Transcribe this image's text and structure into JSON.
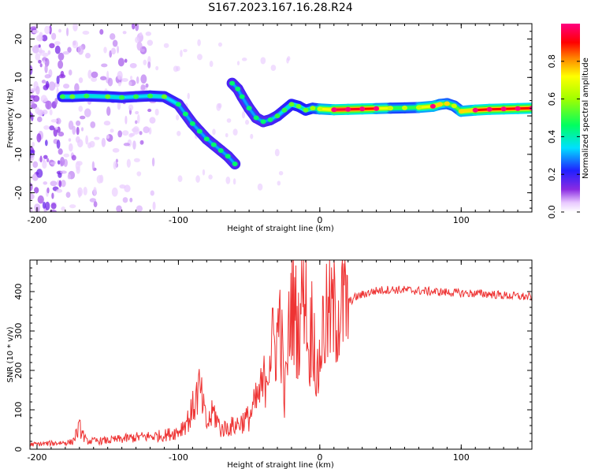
{
  "figure_title": "S167.2023.167.16.28.R24",
  "colors": {
    "snr_line": "#ee3333",
    "axis": "#000000",
    "background": "#ffffff"
  },
  "chart_data": [
    {
      "type": "heatmap",
      "title": "",
      "xlabel": "Height of straight line (km)",
      "ylabel": "Frequency (Hz)",
      "xlim": [
        -205,
        150
      ],
      "ylim": [
        -25,
        24
      ],
      "x_ticks": [
        -200,
        -100,
        0,
        100
      ],
      "x_tick_labels": [
        "-200",
        "-100",
        "0",
        "100"
      ],
      "y_ticks": [
        -20,
        -10,
        0,
        10,
        20
      ],
      "y_tick_labels": [
        "-20",
        "-10",
        "0",
        "10",
        "20"
      ],
      "colorbar": {
        "label": "Normalized spectral amplitude",
        "range": [
          0,
          1
        ],
        "ticks": [
          0.0,
          0.2,
          0.4,
          0.6,
          0.8
        ],
        "tick_labels": [
          "0.0",
          "0.2",
          "0.4",
          "0.6",
          "0.8"
        ],
        "colormap": "rainbow (white-violet-blue-cyan-green-yellow-red-magenta)"
      },
      "ridge": {
        "description": "dominant frequency track (Hz) vs height (km)",
        "x": [
          -182,
          -175,
          -165,
          -150,
          -140,
          -130,
          -120,
          -110,
          -100,
          -95,
          -90,
          -85,
          -80,
          -75,
          -70,
          -65,
          -60,
          -62,
          -58,
          -55,
          -50,
          -45,
          -40,
          -35,
          -30,
          -25,
          -20,
          -15,
          -10,
          -5,
          0,
          10,
          20,
          30,
          40,
          50,
          60,
          70,
          80,
          85,
          90,
          95,
          100,
          110,
          120,
          130,
          140,
          150
        ],
        "y": [
          5.0,
          5.0,
          5.2,
          5.0,
          4.8,
          5.0,
          5.2,
          5.0,
          3.0,
          0.5,
          -2.0,
          -4.0,
          -6.0,
          -7.5,
          -9.0,
          -10.5,
          -12.5,
          8.5,
          7.0,
          5.0,
          2.0,
          -0.5,
          -1.5,
          -1.0,
          0.0,
          1.5,
          3.0,
          2.5,
          1.5,
          2.0,
          1.8,
          1.6,
          1.7,
          1.8,
          1.9,
          2.0,
          2.1,
          2.2,
          2.5,
          3.0,
          3.2,
          2.6,
          1.2,
          1.5,
          1.7,
          1.8,
          1.9,
          2.0
        ],
        "amplitude": [
          0.35,
          0.4,
          0.35,
          0.4,
          0.35,
          0.35,
          0.35,
          0.4,
          0.3,
          0.3,
          0.3,
          0.3,
          0.3,
          0.3,
          0.3,
          0.3,
          0.3,
          0.3,
          0.3,
          0.3,
          0.3,
          0.3,
          0.3,
          0.3,
          0.35,
          0.35,
          0.4,
          0.4,
          0.4,
          0.45,
          0.5,
          0.95,
          0.95,
          0.9,
          0.9,
          0.5,
          0.5,
          0.5,
          0.9,
          0.6,
          0.6,
          0.5,
          0.6,
          0.9,
          0.9,
          0.9,
          0.9,
          0.9
        ]
      },
      "noise_region_x": [
        -205,
        -115
      ]
    },
    {
      "type": "line",
      "title": "",
      "xlabel": "Height of straight line (km)",
      "ylabel": "SNR (10 * v/v)",
      "xlim": [
        -205,
        150
      ],
      "ylim": [
        0,
        480
      ],
      "x_ticks": [
        -200,
        -100,
        0,
        100
      ],
      "x_tick_labels": [
        "-200",
        "-100",
        "0",
        "100"
      ],
      "y_ticks": [
        0,
        100,
        200,
        300,
        400
      ],
      "y_tick_labels": [
        "0",
        "100",
        "200",
        "300",
        "400"
      ],
      "grid": false,
      "series": [
        {
          "x": [
            -205,
            -190,
            -175,
            -170,
            -165,
            -150,
            -130,
            -110,
            -100,
            -92,
            -85,
            -80,
            -75,
            -70,
            -60,
            -50,
            -45,
            -40,
            -35,
            -30,
            -28,
            -25,
            -20,
            -15,
            -12,
            -10,
            -8,
            -5,
            -2,
            0,
            2,
            5,
            10,
            15,
            20,
            25,
            30,
            35,
            40,
            45,
            50,
            60,
            70,
            80,
            90,
            100,
            110,
            120,
            130,
            140,
            150
          ],
          "y": [
            12,
            15,
            18,
            55,
            20,
            22,
            30,
            35,
            45,
            80,
            155,
            60,
            95,
            50,
            60,
            80,
            120,
            160,
            250,
            280,
            350,
            120,
            390,
            300,
            440,
            470,
            220,
            350,
            160,
            240,
            300,
            330,
            345,
            360,
            372,
            385,
            392,
            398,
            402,
            404,
            405,
            404,
            402,
            400,
            398,
            396,
            395,
            394,
            390,
            388,
            386
          ]
        }
      ]
    }
  ]
}
